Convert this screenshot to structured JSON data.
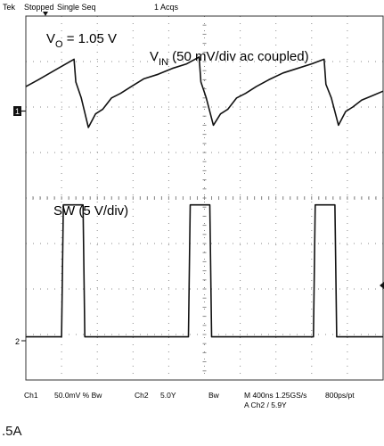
{
  "header": {
    "brand": "Tek",
    "status": "Stopped",
    "mode": "Single Seq",
    "acqs": "1 Acqs"
  },
  "labels": {
    "vo_main": "V",
    "vo_sub": "O",
    "vo_rest": " = 1.05 V",
    "vin_main": "V",
    "vin_sub": "IN",
    "vin_rest": " (50 mV/div ac coupled)",
    "sw": "SW (5 V/div)"
  },
  "markers": {
    "ch1": "1",
    "ch2": "2"
  },
  "footer": {
    "ch1": "Ch1",
    "ch1_scale": "50.0mV % Bw",
    "ch2": "Ch2",
    "ch2_scale": "5.0Y",
    "bw": "Bw",
    "timebase": "M 400ns 1.25GS/s",
    "trigger": "A Ch2 / 5.9Y",
    "resolution": "800ps/pt"
  },
  "caption": ".5A",
  "colors": {
    "trace": "#111111",
    "grid": "#8a8a8a",
    "background": "#ffffff"
  },
  "chart_data": {
    "type": "line",
    "x_unit": "div",
    "xlim": [
      0,
      10
    ],
    "ylim": [
      0,
      8
    ],
    "grid": true,
    "series": [
      {
        "name": "V_IN",
        "x": [
          0,
          0.35,
          0.9,
          1.35,
          1.4,
          1.55,
          1.75,
          1.95,
          2.15,
          2.4,
          2.65,
          2.95,
          3.3,
          3.7,
          4.1,
          4.5,
          4.85,
          4.9,
          5.05,
          5.25,
          5.45,
          5.65,
          5.9,
          6.15,
          6.45,
          6.8,
          7.2,
          7.6,
          8.0,
          8.35,
          8.4,
          8.55,
          8.75,
          8.95,
          9.15,
          9.4,
          9.7,
          10.0
        ],
        "y": [
          6.45,
          6.6,
          6.85,
          7.05,
          6.55,
          6.2,
          5.55,
          5.85,
          5.95,
          6.2,
          6.3,
          6.45,
          6.62,
          6.72,
          6.85,
          6.95,
          7.1,
          6.55,
          6.2,
          5.6,
          5.85,
          5.95,
          6.2,
          6.3,
          6.45,
          6.6,
          6.75,
          6.85,
          6.95,
          7.05,
          6.5,
          6.2,
          5.6,
          5.9,
          6.0,
          6.15,
          6.25,
          6.35
        ]
      },
      {
        "name": "SW",
        "x": [
          0,
          1.0,
          1.05,
          1.6,
          1.65,
          4.55,
          4.6,
          5.15,
          5.2,
          8.05,
          8.1,
          8.65,
          8.7,
          10.0
        ],
        "y": [
          0.95,
          0.95,
          3.85,
          3.85,
          0.95,
          0.95,
          3.85,
          3.85,
          0.95,
          0.95,
          3.85,
          3.85,
          0.95,
          0.95
        ]
      }
    ]
  }
}
